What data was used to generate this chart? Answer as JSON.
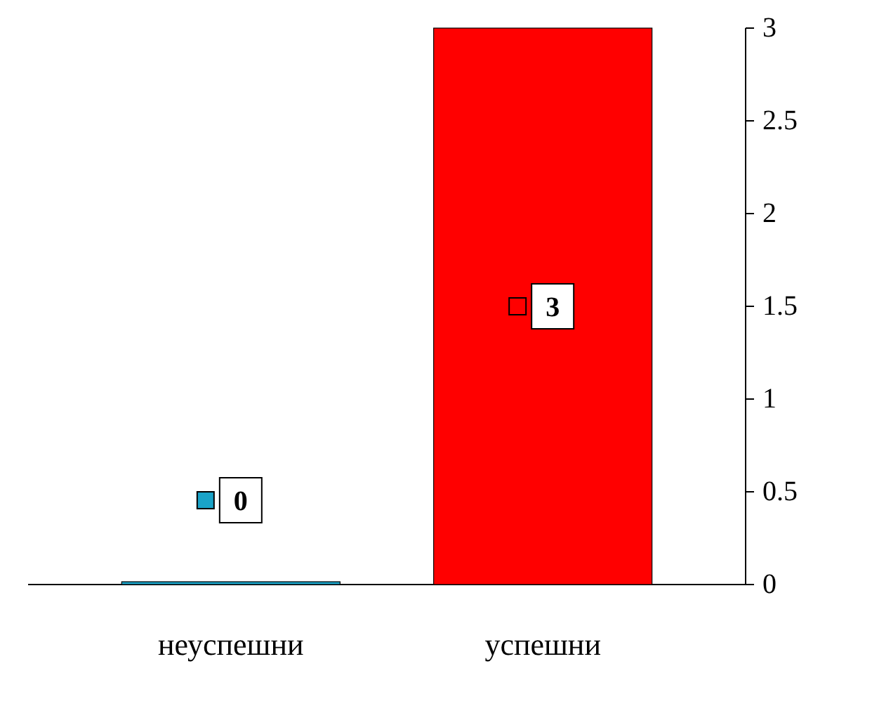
{
  "chart_data": {
    "type": "bar",
    "categories": [
      "неуспешни",
      "успешни"
    ],
    "values": [
      0,
      3
    ],
    "colors": [
      "#1aa3c8",
      "#ff0000"
    ],
    "ylim": [
      0,
      3
    ],
    "yticks": [
      0,
      0.5,
      1,
      1.5,
      2,
      2.5,
      3
    ],
    "data_labels": true
  }
}
